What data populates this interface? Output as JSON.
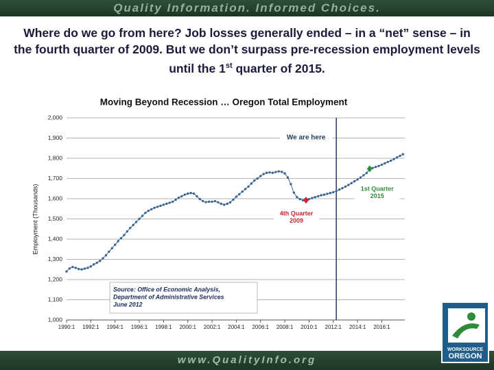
{
  "slide": {
    "banner": "Quality Information. Informed Choices.",
    "heading": [
      "Where do we go from here? Job losses generally ended – in a “net” sense – in the fourth quarter of 2009. But we don’t surpass pre-recession employment levels until the ",
      "st",
      " quarter of 2015."
    ],
    "heading_pre": "1",
    "footer": "www.QualityInfo.org",
    "logo": [
      "WORKSOURCE",
      "OREGON"
    ]
  },
  "chart_data": {
    "type": "line",
    "title": "Moving Beyond Recession … Oregon Total Employment",
    "y_label": "Employment (Thousands)",
    "x": [
      1990,
      1990.25,
      1990.5,
      1990.75,
      1991,
      1991.25,
      1991.5,
      1991.75,
      1992,
      1992.25,
      1992.5,
      1992.75,
      1993,
      1993.25,
      1993.5,
      1993.75,
      1994,
      1994.25,
      1994.5,
      1994.75,
      1995,
      1995.25,
      1995.5,
      1995.75,
      1996,
      1996.25,
      1996.5,
      1996.75,
      1997,
      1997.25,
      1997.5,
      1997.75,
      1998,
      1998.25,
      1998.5,
      1998.75,
      1999,
      1999.25,
      1999.5,
      1999.75,
      2000,
      2000.25,
      2000.5,
      2000.75,
      2001,
      2001.25,
      2001.5,
      2001.75,
      2002,
      2002.25,
      2002.5,
      2002.75,
      2003,
      2003.25,
      2003.5,
      2003.75,
      2004,
      2004.25,
      2004.5,
      2004.75,
      2005,
      2005.25,
      2005.5,
      2005.75,
      2006,
      2006.25,
      2006.5,
      2006.75,
      2007,
      2007.25,
      2007.5,
      2007.75,
      2008,
      2008.25,
      2008.5,
      2008.75,
      2009,
      2009.25,
      2009.5,
      2009.75,
      2010,
      2010.25,
      2010.5,
      2010.75,
      2011,
      2011.25,
      2011.5,
      2011.75,
      2012,
      2012.25,
      2012.5,
      2012.75,
      2013,
      2013.25,
      2013.5,
      2013.75,
      2014,
      2014.25,
      2014.5,
      2014.75,
      2015,
      2015.25,
      2015.5,
      2015.75,
      2016,
      2016.25,
      2016.5,
      2016.75,
      2017,
      2017.25,
      2017.5,
      2017.75
    ],
    "series": [
      {
        "name": "Oregon Total Employment",
        "color": "#3b6591",
        "values": [
          1240,
          1255,
          1262,
          1258,
          1252,
          1250,
          1254,
          1258,
          1265,
          1275,
          1283,
          1292,
          1305,
          1320,
          1338,
          1355,
          1372,
          1390,
          1405,
          1420,
          1438,
          1455,
          1470,
          1485,
          1500,
          1515,
          1530,
          1540,
          1548,
          1555,
          1560,
          1565,
          1570,
          1575,
          1580,
          1585,
          1595,
          1605,
          1612,
          1620,
          1625,
          1628,
          1625,
          1612,
          1598,
          1588,
          1583,
          1585,
          1585,
          1588,
          1582,
          1575,
          1570,
          1575,
          1582,
          1595,
          1610,
          1622,
          1635,
          1648,
          1660,
          1675,
          1690,
          1700,
          1712,
          1722,
          1728,
          1730,
          1728,
          1732,
          1735,
          1733,
          1725,
          1705,
          1672,
          1630,
          1608,
          1598,
          1592,
          1593,
          1598,
          1603,
          1608,
          1612,
          1617,
          1620,
          1624,
          1628,
          1632,
          1638,
          1645,
          1652,
          1660,
          1668,
          1677,
          1686,
          1695,
          1705,
          1716,
          1727,
          1748,
          1752,
          1757,
          1762,
          1768,
          1775,
          1782,
          1788,
          1796,
          1804,
          1812,
          1820
        ]
      }
    ],
    "xlim": [
      1990,
      2017.9
    ],
    "xticks": [
      {
        "value": 1990,
        "label": "1990:1"
      },
      {
        "value": 1992,
        "label": "1992:1"
      },
      {
        "value": 1994,
        "label": "1994:1"
      },
      {
        "value": 1996,
        "label": "1996:1"
      },
      {
        "value": 1998,
        "label": "1998:1"
      },
      {
        "value": 2000,
        "label": "2000:1"
      },
      {
        "value": 2002,
        "label": "2002:1"
      },
      {
        "value": 2004,
        "label": "2004:1"
      },
      {
        "value": 2006,
        "label": "2006:1"
      },
      {
        "value": 2008,
        "label": "2008:1"
      },
      {
        "value": 2010,
        "label": "2010:1"
      },
      {
        "value": 2012,
        "label": "2012:1"
      },
      {
        "value": 2014,
        "label": "2014:1"
      },
      {
        "value": 2016,
        "label": "2016:1"
      }
    ],
    "ylim": [
      1000,
      2000
    ],
    "yticks": [
      {
        "value": 1000,
        "label": "1,000"
      },
      {
        "value": 1100,
        "label": "1,100"
      },
      {
        "value": 1200,
        "label": "1,200"
      },
      {
        "value": 1300,
        "label": "1,300"
      },
      {
        "value": 1400,
        "label": "1,400"
      },
      {
        "value": 1500,
        "label": "1,500"
      },
      {
        "value": 1600,
        "label": "1,600"
      },
      {
        "value": 1700,
        "label": "1,700"
      },
      {
        "value": 1800,
        "label": "1,800"
      },
      {
        "value": 1900,
        "label": "1,900"
      },
      {
        "value": 2000,
        "label": "2,000"
      }
    ],
    "grid": true,
    "now": {
      "x": 2012.25,
      "label": "We are here"
    },
    "highlights": [
      {
        "index": 79,
        "label": [
          "4th Quarter",
          "2009"
        ],
        "color": "#cc2233"
      },
      {
        "index": 100,
        "label": [
          "1st Quarter",
          "2015"
        ],
        "color": "#2e8b3a"
      }
    ],
    "source": [
      "Source:  Office of Economic Analysis,",
      "Department of Administrative Services",
      "June 2012"
    ]
  }
}
